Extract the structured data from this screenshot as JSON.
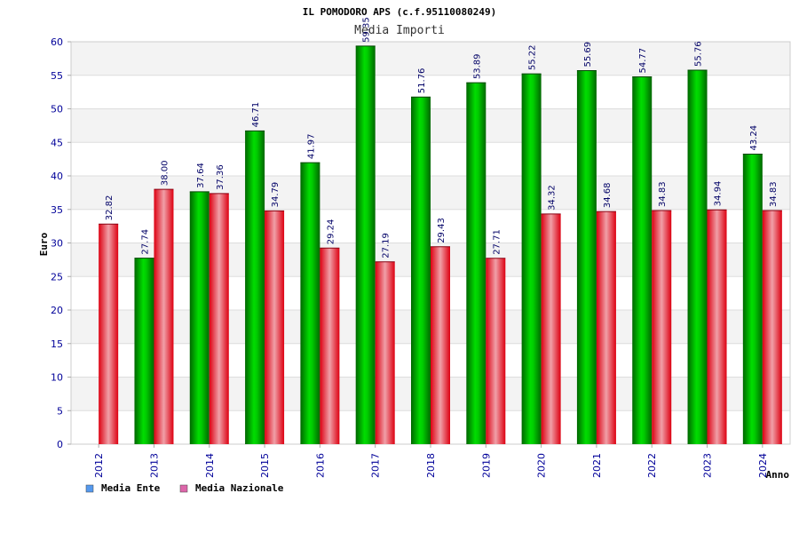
{
  "chart_data": {
    "type": "bar",
    "title": "IL POMODORO APS (c.f.95110080249)",
    "subtitle": "Media Importi",
    "ylabel": "Euro",
    "xlabel": "Anno",
    "ylim": [
      0,
      60
    ],
    "yticks": [
      0,
      5,
      10,
      15,
      20,
      25,
      30,
      35,
      40,
      45,
      50,
      55,
      60
    ],
    "categories": [
      "2012",
      "2013",
      "2014",
      "2015",
      "2016",
      "2017",
      "2018",
      "2019",
      "2020",
      "2021",
      "2022",
      "2023",
      "2024"
    ],
    "series": [
      {
        "name": "Media Ente",
        "values": [
          null,
          27.74,
          37.64,
          46.71,
          41.97,
          59.35,
          51.76,
          53.89,
          55.22,
          55.69,
          54.77,
          55.76,
          43.24
        ],
        "labels": [
          "",
          "27.74",
          "37.64",
          "46.71",
          "41.97",
          "59.35",
          "51.76",
          "53.89",
          "55.22",
          "55.69",
          "54.77",
          "55.76",
          "43.24"
        ],
        "color": "#00bb00",
        "legend_color": "#5599ee"
      },
      {
        "name": "Media Nazionale",
        "values": [
          32.82,
          38.0,
          37.36,
          34.79,
          29.24,
          27.19,
          29.43,
          27.71,
          34.32,
          34.68,
          34.83,
          34.94,
          34.83
        ],
        "labels": [
          "32.82",
          "38.00",
          "37.36",
          "34.79",
          "29.24",
          "27.19",
          "29.43",
          "27.71",
          "34.32",
          "34.68",
          "34.83",
          "34.94",
          "34.83"
        ],
        "color": "#ee1122",
        "legend_color": "#dd66aa"
      }
    ],
    "grid": true,
    "legend_position": "bottom-left"
  }
}
